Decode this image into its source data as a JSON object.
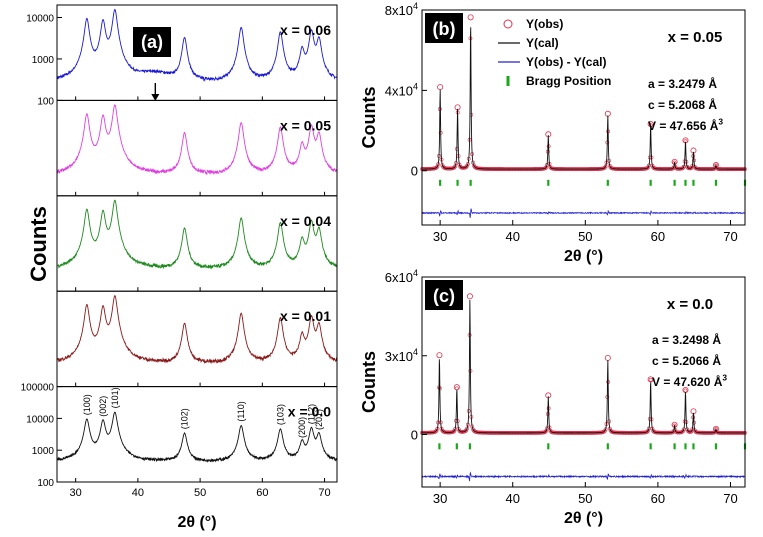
{
  "colors": {
    "x006": "#1a1ad6",
    "x005": "#e040e0",
    "x004": "#1e8a1e",
    "x001": "#8b1a1a",
    "x000": "#111111",
    "obs": "#e0304a",
    "cal": "#111111",
    "diff": "#2020d0",
    "bragg": "#1aa81a",
    "panel_bg": "#ffffff",
    "label_bg": "#000000",
    "label_fg": "#ffffff"
  },
  "chart_data": [
    {
      "panel": "(a)",
      "type": "line",
      "xlabel": "2θ (°)",
      "ylabel": "Counts",
      "xlim": [
        27,
        72
      ],
      "xticks": [
        30,
        40,
        50,
        60,
        70
      ],
      "yscale": "log",
      "stacked_subplots": [
        {
          "label": "x = 0.06",
          "color_key": "x006",
          "ylim": [
            100,
            20000
          ],
          "yticks": [
            "100",
            "1000",
            "10000"
          ],
          "arrow_at": 42.8,
          "background": 260,
          "hump": {
            "center": 42.8,
            "height": 160,
            "width": 3
          }
        },
        {
          "label": "x = 0.05",
          "color_key": "x005",
          "ylim": [
            100,
            20000
          ],
          "yticks": [],
          "background": 300
        },
        {
          "label": "x = 0.04",
          "color_key": "x004",
          "ylim": [
            100,
            20000
          ],
          "yticks": [],
          "background": 320
        },
        {
          "label": "x = 0.01",
          "color_key": "x001",
          "ylim": [
            100,
            20000
          ],
          "yticks": [],
          "background": 340
        },
        {
          "label": "x = 0.0",
          "color_key": "x000",
          "ylim": [
            100,
            100000
          ],
          "yticks": [
            "100",
            "1000",
            "10000",
            "100000"
          ],
          "background": 420,
          "peak_labels": [
            {
              "hkl": "(100)",
              "x": 31.8
            },
            {
              "hkl": "(002)",
              "x": 34.4
            },
            {
              "hkl": "(101)",
              "x": 36.3
            },
            {
              "hkl": "(102)",
              "x": 47.5
            },
            {
              "hkl": "(110)",
              "x": 56.6
            },
            {
              "hkl": "(103)",
              "x": 62.9
            },
            {
              "hkl": "(200)",
              "x": 66.4
            },
            {
              "hkl": "(112)",
              "x": 67.9
            },
            {
              "hkl": "(201)",
              "x": 69.1
            }
          ]
        }
      ],
      "peaks": [
        {
          "x": 31.8,
          "height": 9000
        },
        {
          "x": 34.4,
          "height": 8000
        },
        {
          "x": 36.3,
          "height": 15000
        },
        {
          "x": 47.5,
          "height": 3000
        },
        {
          "x": 56.6,
          "height": 5500
        },
        {
          "x": 62.9,
          "height": 4200
        },
        {
          "x": 66.4,
          "height": 1400
        },
        {
          "x": 67.9,
          "height": 4500
        },
        {
          "x": 69.1,
          "height": 2800
        }
      ]
    },
    {
      "panel": "(b)",
      "type": "line",
      "label": "x = 0.05",
      "xlabel": "2θ (°)",
      "ylabel": "Counts",
      "xlim": [
        27.5,
        72
      ],
      "xticks": [
        30,
        40,
        50,
        60,
        70
      ],
      "ylim": [
        -27000,
        80000
      ],
      "yticks": [
        {
          "value": 0,
          "label": "0",
          "sup": ""
        },
        {
          "value": 40000,
          "label": "4x10",
          "sup": "4"
        },
        {
          "value": 80000,
          "label": "8x10",
          "sup": "4"
        }
      ],
      "legend": [
        "Y(obs)",
        "Y(cal)",
        "Y(obs) - Y(cal)",
        "Bragg Position"
      ],
      "params": [
        "a = 3.2479 Å",
        "c = 5.2068 Å",
        "V = 47.656 Å"
      ],
      "params_sup": [
        "",
        "",
        "3"
      ],
      "bragg_y": -6000,
      "diff_y": -21000,
      "background": 800,
      "peaks": [
        {
          "x": 30.0,
          "height": 40000
        },
        {
          "x": 32.4,
          "height": 30000
        },
        {
          "x": 34.2,
          "height": 74000
        },
        {
          "x": 44.9,
          "height": 17000
        },
        {
          "x": 53.1,
          "height": 27000
        },
        {
          "x": 59.0,
          "height": 22000
        },
        {
          "x": 62.3,
          "height": 3500
        },
        {
          "x": 63.8,
          "height": 14000
        },
        {
          "x": 64.9,
          "height": 9000
        },
        {
          "x": 68.0,
          "height": 2000
        }
      ],
      "bragg_positions": [
        30.0,
        32.4,
        34.2,
        44.9,
        53.1,
        59.0,
        62.3,
        63.8,
        64.9,
        68.0,
        72.0
      ]
    },
    {
      "panel": "(c)",
      "type": "line",
      "label": "x = 0.0",
      "xlabel": "2θ (°)",
      "ylabel": "Counts",
      "xlim": [
        27.5,
        72
      ],
      "xticks": [
        30,
        40,
        50,
        60,
        70
      ],
      "ylim": [
        -20000,
        60000
      ],
      "yticks": [
        {
          "value": 0,
          "label": "0",
          "sup": ""
        },
        {
          "value": 30000,
          "label": "3x10",
          "sup": "4"
        },
        {
          "value": 60000,
          "label": "6x10",
          "sup": "4"
        }
      ],
      "params": [
        "a = 3.2498 Å",
        "c = 5.2066 Å",
        "V = 47.620 Å"
      ],
      "params_sup": [
        "",
        "",
        "3"
      ],
      "bragg_y": -4500,
      "diff_y": -16000,
      "background": 600,
      "peaks": [
        {
          "x": 29.9,
          "height": 29000
        },
        {
          "x": 32.3,
          "height": 17000
        },
        {
          "x": 34.1,
          "height": 51000
        },
        {
          "x": 44.9,
          "height": 14000
        },
        {
          "x": 53.1,
          "height": 28000
        },
        {
          "x": 59.0,
          "height": 20000
        },
        {
          "x": 62.3,
          "height": 3000
        },
        {
          "x": 63.8,
          "height": 16000
        },
        {
          "x": 64.9,
          "height": 8000
        },
        {
          "x": 68.0,
          "height": 1500
        }
      ],
      "bragg_positions": [
        29.9,
        32.3,
        34.1,
        44.9,
        53.1,
        59.0,
        62.3,
        63.8,
        64.9,
        68.0,
        72.0
      ]
    }
  ]
}
